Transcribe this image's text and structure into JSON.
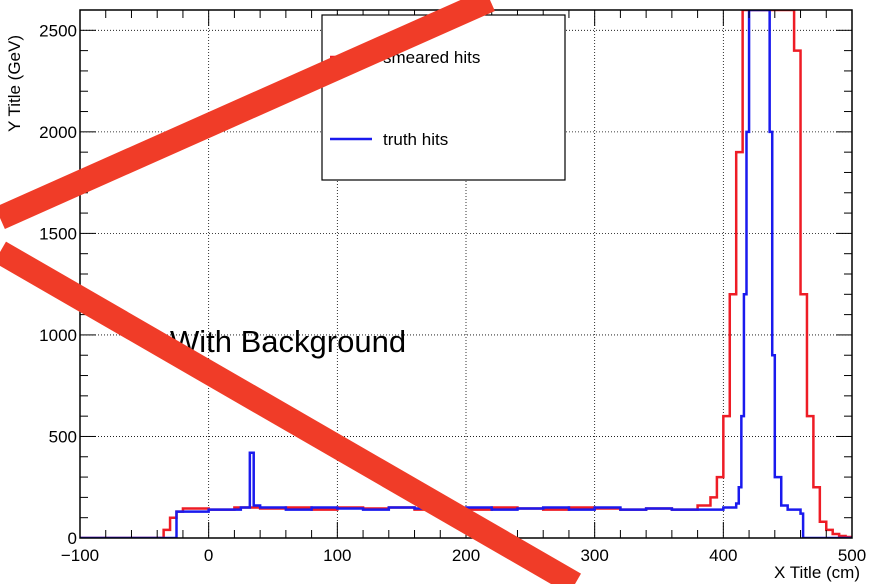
{
  "chart_data": {
    "type": "line",
    "title": "",
    "xlabel": "X Title (cm)",
    "ylabel": "Y Title (GeV)",
    "xlim": [
      -100,
      500
    ],
    "ylim": [
      0,
      2600
    ],
    "x_ticks": [
      -100,
      0,
      100,
      200,
      300,
      400,
      500
    ],
    "x_tick_labels": [
      "−100",
      "0",
      "100",
      "200",
      "300",
      "400",
      "500"
    ],
    "y_ticks": [
      0,
      500,
      1000,
      1500,
      2000,
      2500
    ],
    "y_tick_labels": [
      "0",
      "500",
      "1000",
      "1500",
      "2000",
      "2500"
    ],
    "grid": true,
    "legend_position": "top-center",
    "annotation": "With Background",
    "cross_out_color": "#f03c28",
    "series": [
      {
        "name": "smeared hits",
        "color": "#ee1c25",
        "style": "step",
        "x": [
          -100,
          -40,
          -35,
          -30,
          -25,
          -20,
          0,
          20,
          40,
          60,
          80,
          100,
          120,
          140,
          160,
          180,
          200,
          220,
          240,
          260,
          280,
          300,
          320,
          340,
          360,
          380,
          390,
          395,
          400,
          405,
          410,
          415,
          420,
          425,
          430,
          435,
          440,
          445,
          450,
          455,
          460,
          465,
          470,
          475,
          480,
          485,
          490,
          495,
          500
        ],
        "y": [
          0,
          0,
          40,
          100,
          130,
          145,
          140,
          150,
          145,
          150,
          140,
          150,
          145,
          150,
          140,
          145,
          140,
          150,
          145,
          140,
          150,
          145,
          140,
          145,
          140,
          160,
          200,
          300,
          600,
          1200,
          1900,
          2700,
          2700,
          2700,
          2700,
          2700,
          2700,
          2700,
          2700,
          2400,
          1200,
          600,
          250,
          80,
          40,
          20,
          10,
          5,
          0
        ]
      },
      {
        "name": "truth hits",
        "color": "#1a1aee",
        "style": "step",
        "x": [
          -100,
          -40,
          -35,
          -30,
          -25,
          0,
          25,
          30,
          32,
          35,
          40,
          60,
          80,
          100,
          120,
          140,
          160,
          180,
          200,
          220,
          240,
          260,
          280,
          300,
          320,
          340,
          360,
          380,
          400,
          410,
          412,
          414,
          416,
          418,
          420,
          425,
          430,
          435,
          436,
          438,
          440,
          445,
          450,
          455,
          460,
          462,
          500
        ],
        "y": [
          0,
          0,
          0,
          0,
          130,
          140,
          150,
          150,
          420,
          160,
          150,
          140,
          150,
          145,
          140,
          150,
          145,
          140,
          150,
          140,
          145,
          150,
          140,
          150,
          140,
          145,
          140,
          140,
          150,
          170,
          250,
          600,
          1200,
          2000,
          2700,
          2700,
          2700,
          2700,
          2000,
          900,
          300,
          160,
          140,
          140,
          120,
          0,
          0
        ]
      }
    ]
  }
}
